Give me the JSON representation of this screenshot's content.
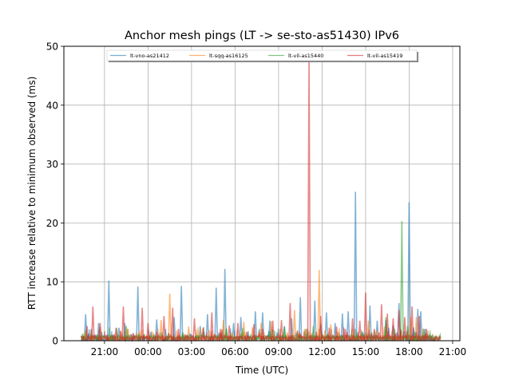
{
  "chart_data": {
    "type": "line",
    "title": "Anchor mesh pings (LT -> se-sto-as51430) IPv6",
    "xlabel": "Time (UTC)",
    "ylabel": "RTT increase relative to minimum observed (ms)",
    "ylim": [
      0,
      50
    ],
    "xlim": [
      -2.8,
      24.5
    ],
    "yticks": [
      0,
      10,
      20,
      30,
      40,
      50
    ],
    "xticks": [
      {
        "value": 0,
        "label": "21:00"
      },
      {
        "value": 3,
        "label": "00:00"
      },
      {
        "value": 6,
        "label": "03:00"
      },
      {
        "value": 9,
        "label": "06:00"
      },
      {
        "value": 12,
        "label": "09:00"
      },
      {
        "value": 15,
        "label": "12:00"
      },
      {
        "value": 18,
        "label": "15:00"
      },
      {
        "value": 21,
        "label": "18:00"
      },
      {
        "value": 24,
        "label": "21:00"
      }
    ],
    "grid": true,
    "legend": "top-center",
    "series": [
      {
        "name": "lt-vno-as21412",
        "color": "#1f77b4",
        "x": [
          -1.3,
          -1.1,
          -0.9,
          -0.6,
          -0.4,
          -0.2,
          0.0,
          0.3,
          0.6,
          1.0,
          1.4,
          1.8,
          2.3,
          2.7,
          3.2,
          3.6,
          4.2,
          4.8,
          5.3,
          5.9,
          6.6,
          7.1,
          7.7,
          8.3,
          8.9,
          9.4,
          9.9,
          10.4,
          10.9,
          11.4,
          11.9,
          12.4,
          12.9,
          13.5,
          14.0,
          14.5,
          14.9,
          15.3,
          15.9,
          16.4,
          16.8,
          17.3,
          17.8,
          18.3,
          18.8,
          19.4,
          19.6,
          19.9,
          20.3,
          20.7,
          21.0,
          21.3,
          21.6,
          21.8,
          22.1,
          22.4,
          22.8
        ],
        "y": [
          4.5,
          1.2,
          2.0,
          0.8,
          3.0,
          1.5,
          0.6,
          10.2,
          1.0,
          2.2,
          3.0,
          1.1,
          9.2,
          1.0,
          1.5,
          3.6,
          2.0,
          4.0,
          9.3,
          1.2,
          2.5,
          4.5,
          9.0,
          12.2,
          3.0,
          4.0,
          1.6,
          5.0,
          4.8,
          3.4,
          1.4,
          2.5,
          3.8,
          7.4,
          2.0,
          6.8,
          2.8,
          4.8,
          3.0,
          4.6,
          5.0,
          25.3,
          1.5,
          6.0,
          3.4,
          3.5,
          2.2,
          2.6,
          6.4,
          1.6,
          23.5,
          2.2,
          5.4,
          5.0,
          2.0,
          1.1,
          0.5
        ]
      },
      {
        "name": "lt-sqq-as16125",
        "color": "#ff7f0e",
        "x": [
          -0.9,
          -0.3,
          0.4,
          1.1,
          1.6,
          2.4,
          3.1,
          3.9,
          4.5,
          5.2,
          5.8,
          6.5,
          7.0,
          7.6,
          8.2,
          8.8,
          9.6,
          10.2,
          10.8,
          11.5,
          12.1,
          12.6,
          13.1,
          13.8,
          14.3,
          14.8,
          15.2,
          15.6,
          16.1,
          16.7,
          17.2,
          17.7,
          18.2,
          18.8,
          19.3,
          19.8,
          20.4,
          21.1,
          21.5,
          22.0
        ],
        "y": [
          1.5,
          2.4,
          1.0,
          0.8,
          2.0,
          1.6,
          0.9,
          3.5,
          8.0,
          1.0,
          2.4,
          1.0,
          0.6,
          1.2,
          3.5,
          1.4,
          3.2,
          2.3,
          3.0,
          3.3,
          2.0,
          1.4,
          5.2,
          2.0,
          1.3,
          12.0,
          1.8,
          2.8,
          1.5,
          1.0,
          2.0,
          1.2,
          3.4,
          1.8,
          2.4,
          0.8,
          1.6,
          4.0,
          4.0,
          1.0
        ]
      },
      {
        "name": "lt-vil-as15440",
        "color": "#2ca02c",
        "x": [
          -1.5,
          -0.5,
          0.5,
          1.5,
          2.4,
          3.4,
          4.4,
          5.4,
          6.4,
          7.4,
          8.4,
          9.4,
          10.4,
          11.4,
          12.4,
          13.4,
          14.4,
          15.4,
          16.4,
          17.4,
          18.4,
          19.4,
          20.0,
          20.5,
          20.9,
          21.4,
          22.0,
          22.6
        ],
        "y": [
          1.2,
          0.8,
          1.0,
          2.5,
          1.0,
          0.8,
          1.2,
          1.4,
          1.0,
          0.8,
          2.0,
          1.2,
          1.0,
          1.6,
          2.3,
          1.0,
          2.5,
          1.2,
          1.0,
          1.4,
          1.2,
          4.0,
          2.0,
          20.3,
          2.5,
          1.5,
          2.0,
          1.0
        ]
      },
      {
        "name": "lt-vil-as15419",
        "color": "#d62728",
        "x": [
          -1.2,
          -0.8,
          -0.3,
          0.2,
          0.8,
          1.3,
          2.0,
          2.6,
          3.0,
          3.6,
          4.1,
          4.7,
          5.1,
          5.6,
          6.2,
          6.8,
          7.4,
          8.0,
          8.6,
          9.2,
          9.8,
          10.3,
          10.9,
          11.6,
          12.2,
          12.8,
          13.5,
          14.1,
          14.6,
          14.9,
          15.5,
          16.0,
          16.6,
          17.1,
          17.6,
          18.0,
          18.6,
          19.1,
          19.5,
          19.9,
          20.3,
          20.7,
          21.2,
          21.7,
          22.2
        ],
        "y": [
          2.5,
          5.8,
          3.0,
          1.0,
          2.2,
          5.8,
          1.2,
          5.6,
          3.0,
          1.5,
          4.2,
          5.6,
          2.0,
          1.0,
          3.8,
          2.2,
          4.8,
          2.0,
          2.6,
          3.0,
          1.5,
          2.8,
          2.0,
          3.4,
          3.5,
          6.4,
          1.2,
          48.0,
          1.5,
          4.2,
          2.2,
          2.4,
          2.0,
          3.8,
          3.4,
          8.2,
          2.0,
          6.2,
          4.6,
          3.8,
          5.2,
          4.0,
          5.8,
          4.2,
          2.0
        ]
      }
    ]
  }
}
